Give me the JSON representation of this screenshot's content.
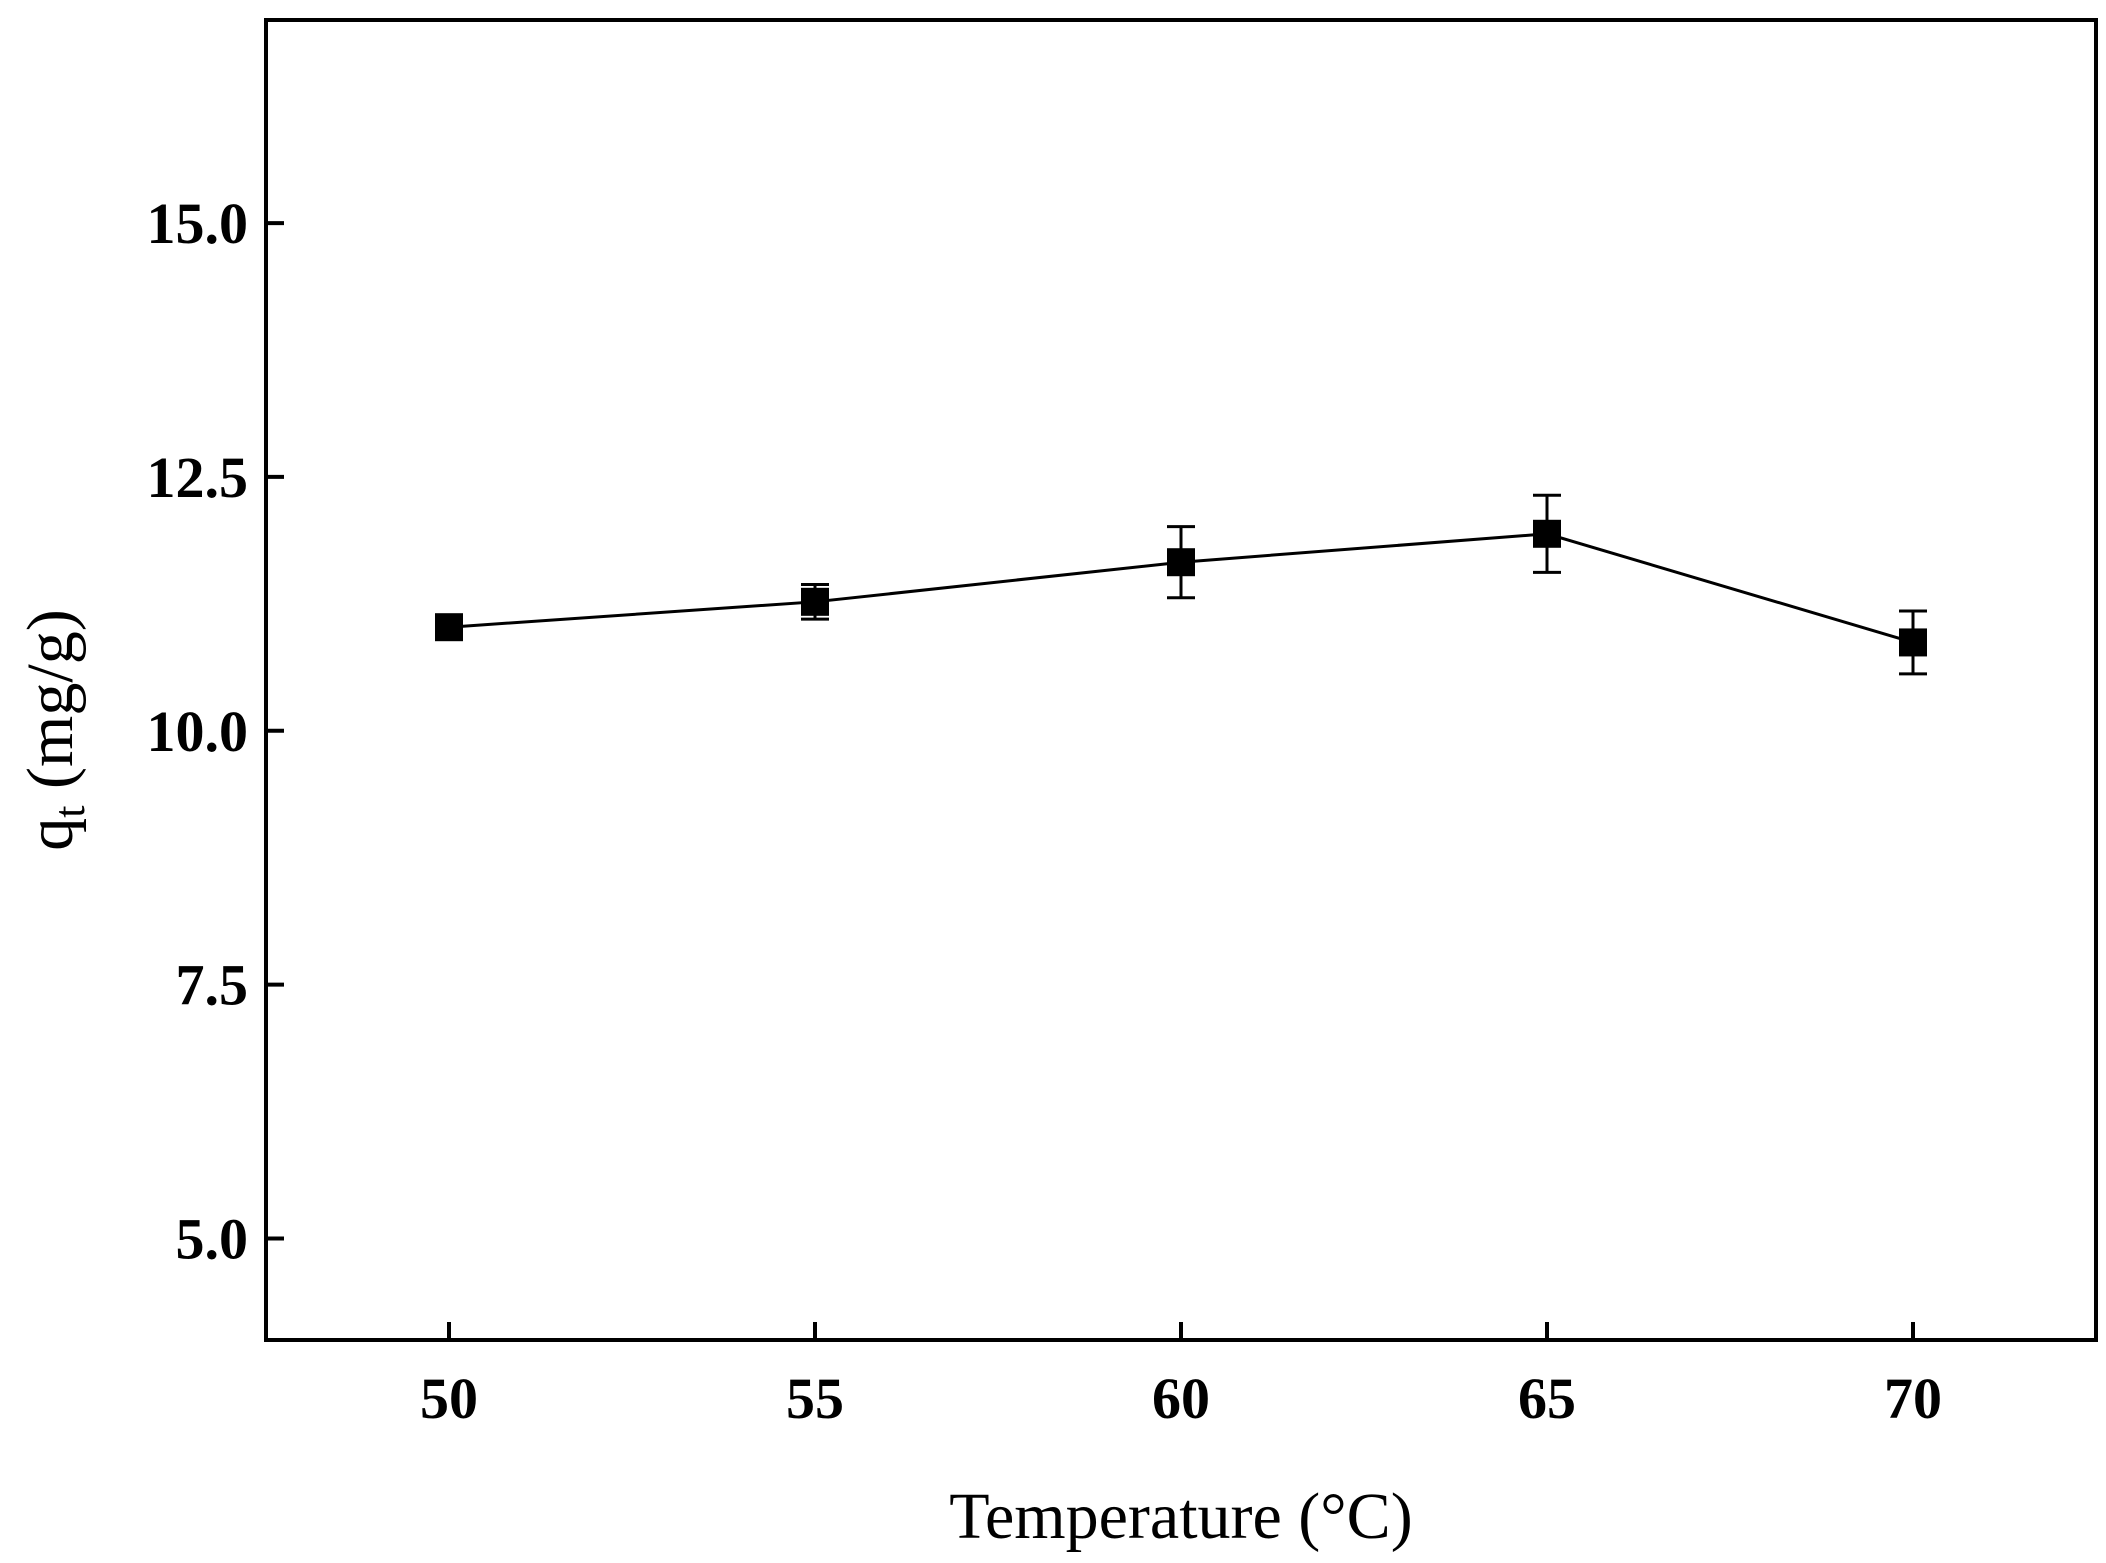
{
  "chart_data": {
    "type": "line",
    "xlabel": "Temperature (°C)",
    "ylabel": {
      "main": "q",
      "sub": "t",
      "unit": " (mg/g)"
    },
    "xlim": [
      47.5,
      72.5
    ],
    "ylim": [
      4.0,
      17.0
    ],
    "x_ticks": [
      50,
      55,
      60,
      65,
      70
    ],
    "x_tick_labels": [
      "50",
      "55",
      "60",
      "65",
      "70"
    ],
    "y_ticks": [
      5.0,
      7.5,
      10.0,
      12.5,
      15.0
    ],
    "y_tick_labels": [
      "5.0",
      "7.5",
      "10.0",
      "12.5",
      "15.0"
    ],
    "grid": false,
    "series": [
      {
        "marker": "square",
        "color": "#000000",
        "x": [
          50,
          55,
          60,
          65,
          70
        ],
        "y": [
          11.02,
          11.27,
          11.66,
          11.94,
          10.87
        ],
        "error": [
          0.05,
          0.17,
          0.35,
          0.38,
          0.31
        ]
      }
    ]
  }
}
